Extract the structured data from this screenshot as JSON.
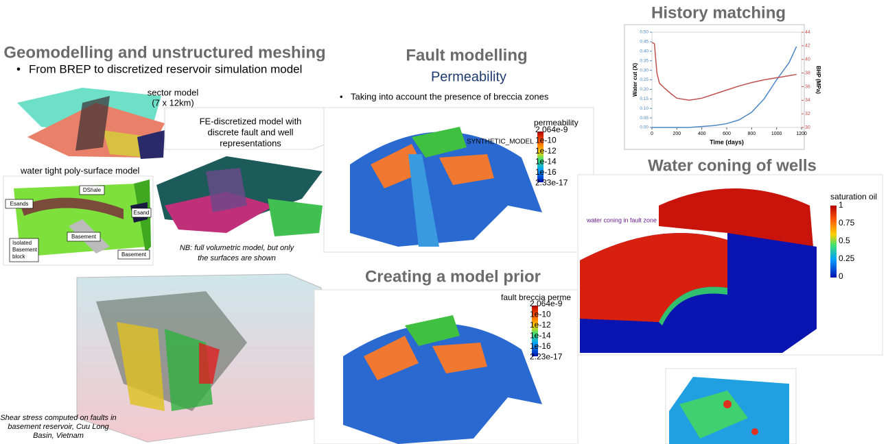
{
  "geomodelling": {
    "title": "Geomodelling and unstructured meshing",
    "bullet": "From BREP to discretized reservoir simulation model",
    "sector_model": [
      "sector model",
      "(7 x 12km)"
    ],
    "fe_model": [
      "FE-discretized model with",
      "discrete fault and well",
      "representations"
    ],
    "watertight_title": "water tight poly-surface model",
    "diagram_labels": {
      "dshale": "DShale",
      "esands": "Esands",
      "esand": "Esand",
      "basement_1": "Basement",
      "isolated": [
        "Isolated",
        "Basement",
        "block"
      ],
      "basement_2": "Basement"
    },
    "note": [
      "NB: full volumetric model, but only",
      "the surfaces are shown"
    ],
    "shear_caption": [
      "Shear stress computed on faults in",
      "basement reservoir, Cuu Long",
      "Basin, Vietnam"
    ]
  },
  "fault_modelling": {
    "title": "Fault modelling",
    "subtitle": "Permeability",
    "bullet": "Taking into account the presence of breccia zones",
    "model_label": "SYNTHETIC_MODEL",
    "legend": {
      "title": "permeability",
      "labels": [
        "2.064e-9",
        "1e-10",
        "1e-12",
        "1e-14",
        "1e-16",
        "2.33e-17"
      ]
    }
  },
  "model_prior": {
    "title": "Creating a model prior",
    "legend": {
      "title": "fault breccia perme",
      "labels": [
        "2.064e-9",
        "1e-10",
        "1e-12",
        "1e-14",
        "1e-16",
        "2.23e-17"
      ]
    }
  },
  "history_matching": {
    "title": "History matching",
    "chart_data": {
      "type": "line",
      "x_label": "Time (days)",
      "y_label": "Water cut (X)",
      "y2_label": "BHP (MPa)",
      "x": [
        0,
        20,
        40,
        60,
        100,
        150,
        200,
        300,
        400,
        500,
        600,
        700,
        800,
        900,
        1000,
        1100,
        1160
      ],
      "series": [
        {
          "color": "#4a86c5",
          "values": [
            0,
            0,
            0,
            0,
            0,
            0,
            0,
            0,
            0.005,
            0.01,
            0.02,
            0.04,
            0.08,
            0.15,
            0.25,
            0.34,
            0.425
          ]
        },
        {
          "color": "#c0504d",
          "axis": "y2",
          "values": [
            42.5,
            42.3,
            38,
            36.5,
            35.8,
            35,
            34.3,
            34,
            34.3,
            34.9,
            35.5,
            36.1,
            36.6,
            37,
            37.3,
            37.6,
            37.8
          ]
        }
      ],
      "xlim": [
        0,
        1200
      ],
      "xticks": [
        0,
        200,
        400,
        600,
        800,
        1000,
        1200
      ],
      "ylim": [
        0,
        0.5
      ],
      "yticks": [
        {
          "value": 0,
          "label": "0.00"
        },
        {
          "value": 0.05,
          "label": "0.05"
        },
        {
          "value": 0.1,
          "label": "0.10"
        },
        {
          "value": 0.15,
          "label": "0.15"
        },
        {
          "value": 0.2,
          "label": "0.20"
        },
        {
          "value": 0.25,
          "label": "0.25"
        },
        {
          "value": 0.3,
          "label": "0.30"
        },
        {
          "value": 0.35,
          "label": "0.35"
        },
        {
          "value": 0.4,
          "label": "0.40"
        },
        {
          "value": 0.45,
          "label": "0.45"
        },
        {
          "value": 0.5,
          "label": "0.50"
        }
      ],
      "y2lim": [
        30,
        44
      ],
      "y2ticks": [
        30,
        32,
        34,
        36,
        38,
        40,
        42,
        44
      ]
    }
  },
  "water_coning": {
    "title": "Water coning of wells",
    "annotation": "water coning in fault zone",
    "legend": {
      "title": "saturation oil",
      "labels": [
        "1",
        "0.75",
        "0.5",
        "0.25",
        "0"
      ]
    }
  }
}
